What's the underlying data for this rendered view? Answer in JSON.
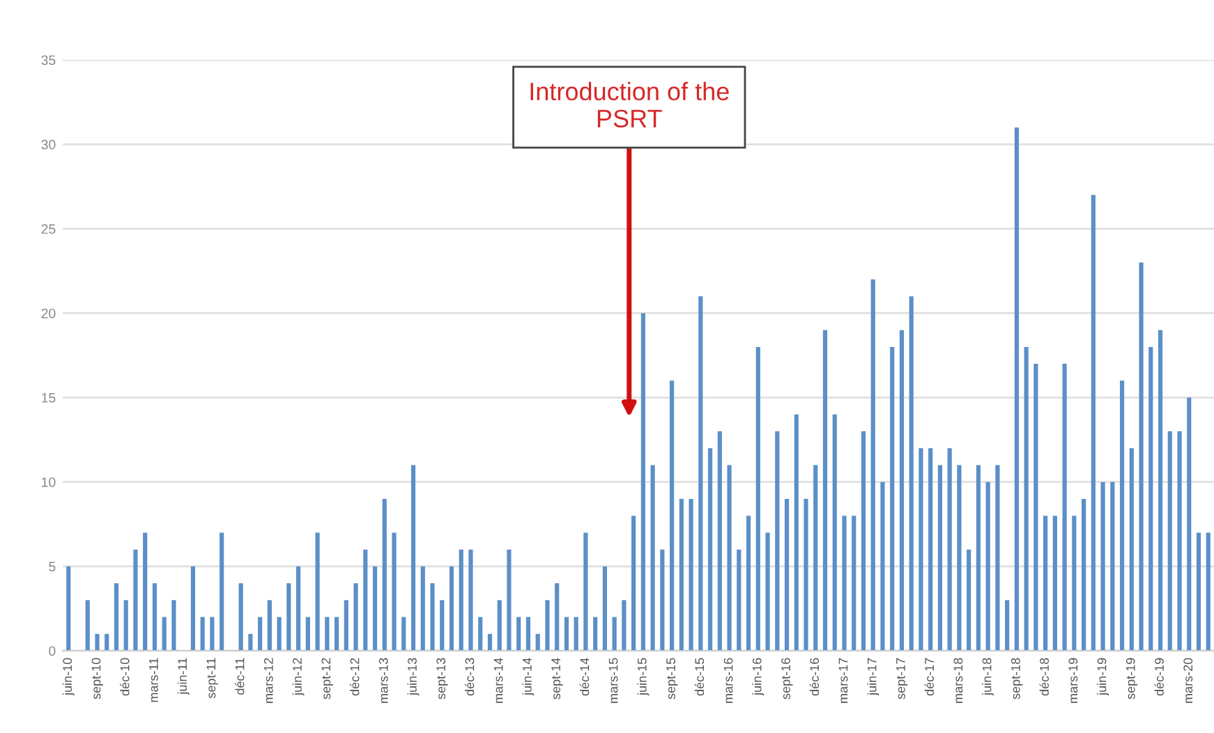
{
  "chart_data": {
    "type": "bar",
    "categories": [
      "juin-10",
      null,
      null,
      "sept-10",
      null,
      null,
      "déc-10",
      null,
      null,
      "mars-11",
      null,
      null,
      "juin-11",
      null,
      null,
      "sept-11",
      null,
      null,
      "déc-11",
      null,
      null,
      "mars-12",
      null,
      null,
      "juin-12",
      null,
      null,
      "sept-12",
      null,
      null,
      "déc-12",
      null,
      null,
      "mars-13",
      null,
      null,
      "juin-13",
      null,
      null,
      "sept-13",
      null,
      null,
      "déc-13",
      null,
      null,
      "mars-14",
      null,
      null,
      "juin-14",
      null,
      null,
      "sept-14",
      null,
      null,
      "déc-14",
      null,
      null,
      "mars-15",
      null,
      null,
      "juin-15",
      null,
      null,
      "sept-15",
      null,
      null,
      "déc-15",
      null,
      null,
      "mars-16",
      null,
      null,
      "juin-16",
      null,
      null,
      "sept-16",
      null,
      null,
      "déc-16",
      null,
      null,
      "mars-17",
      null,
      null,
      "juin-17",
      null,
      null,
      "sept-17",
      null,
      null,
      "déc-17",
      null,
      null,
      "mars-18",
      null,
      null,
      "juin-18",
      null,
      null,
      "sept-18",
      null,
      null,
      "déc-18",
      null,
      null,
      "mars-19",
      null,
      null,
      "juin-19",
      null,
      null,
      "sept-19",
      null,
      null,
      "déc-19",
      null,
      null,
      "mars-20",
      null,
      null
    ],
    "values": [
      5,
      0,
      3,
      1,
      1,
      4,
      3,
      6,
      7,
      4,
      2,
      3,
      0,
      5,
      2,
      2,
      7,
      0,
      4,
      1,
      2,
      3,
      2,
      4,
      5,
      2,
      7,
      2,
      2,
      3,
      4,
      6,
      5,
      9,
      7,
      2,
      11,
      5,
      4,
      3,
      5,
      6,
      6,
      2,
      1,
      3,
      6,
      2,
      2,
      1,
      3,
      4,
      2,
      2,
      7,
      2,
      5,
      2,
      3,
      8,
      20,
      11,
      6,
      16,
      9,
      9,
      21,
      12,
      13,
      11,
      6,
      8,
      18,
      7,
      13,
      9,
      14,
      9,
      11,
      19,
      14,
      8,
      8,
      13,
      22,
      10,
      18,
      19,
      21,
      12,
      12,
      11,
      12,
      11,
      6,
      11,
      10,
      11,
      3,
      31,
      18,
      17,
      8,
      8,
      17,
      8,
      9,
      27,
      10,
      10,
      16,
      12,
      23,
      18,
      19,
      13,
      13,
      15,
      7,
      7
    ],
    "color": "#5b8fc7",
    "ylim": [
      0,
      35
    ],
    "yticks": [
      0,
      5,
      10,
      15,
      20,
      25,
      30,
      35
    ],
    "grid": "y",
    "annotations": [
      "Introduction of the\nPSRT"
    ]
  }
}
